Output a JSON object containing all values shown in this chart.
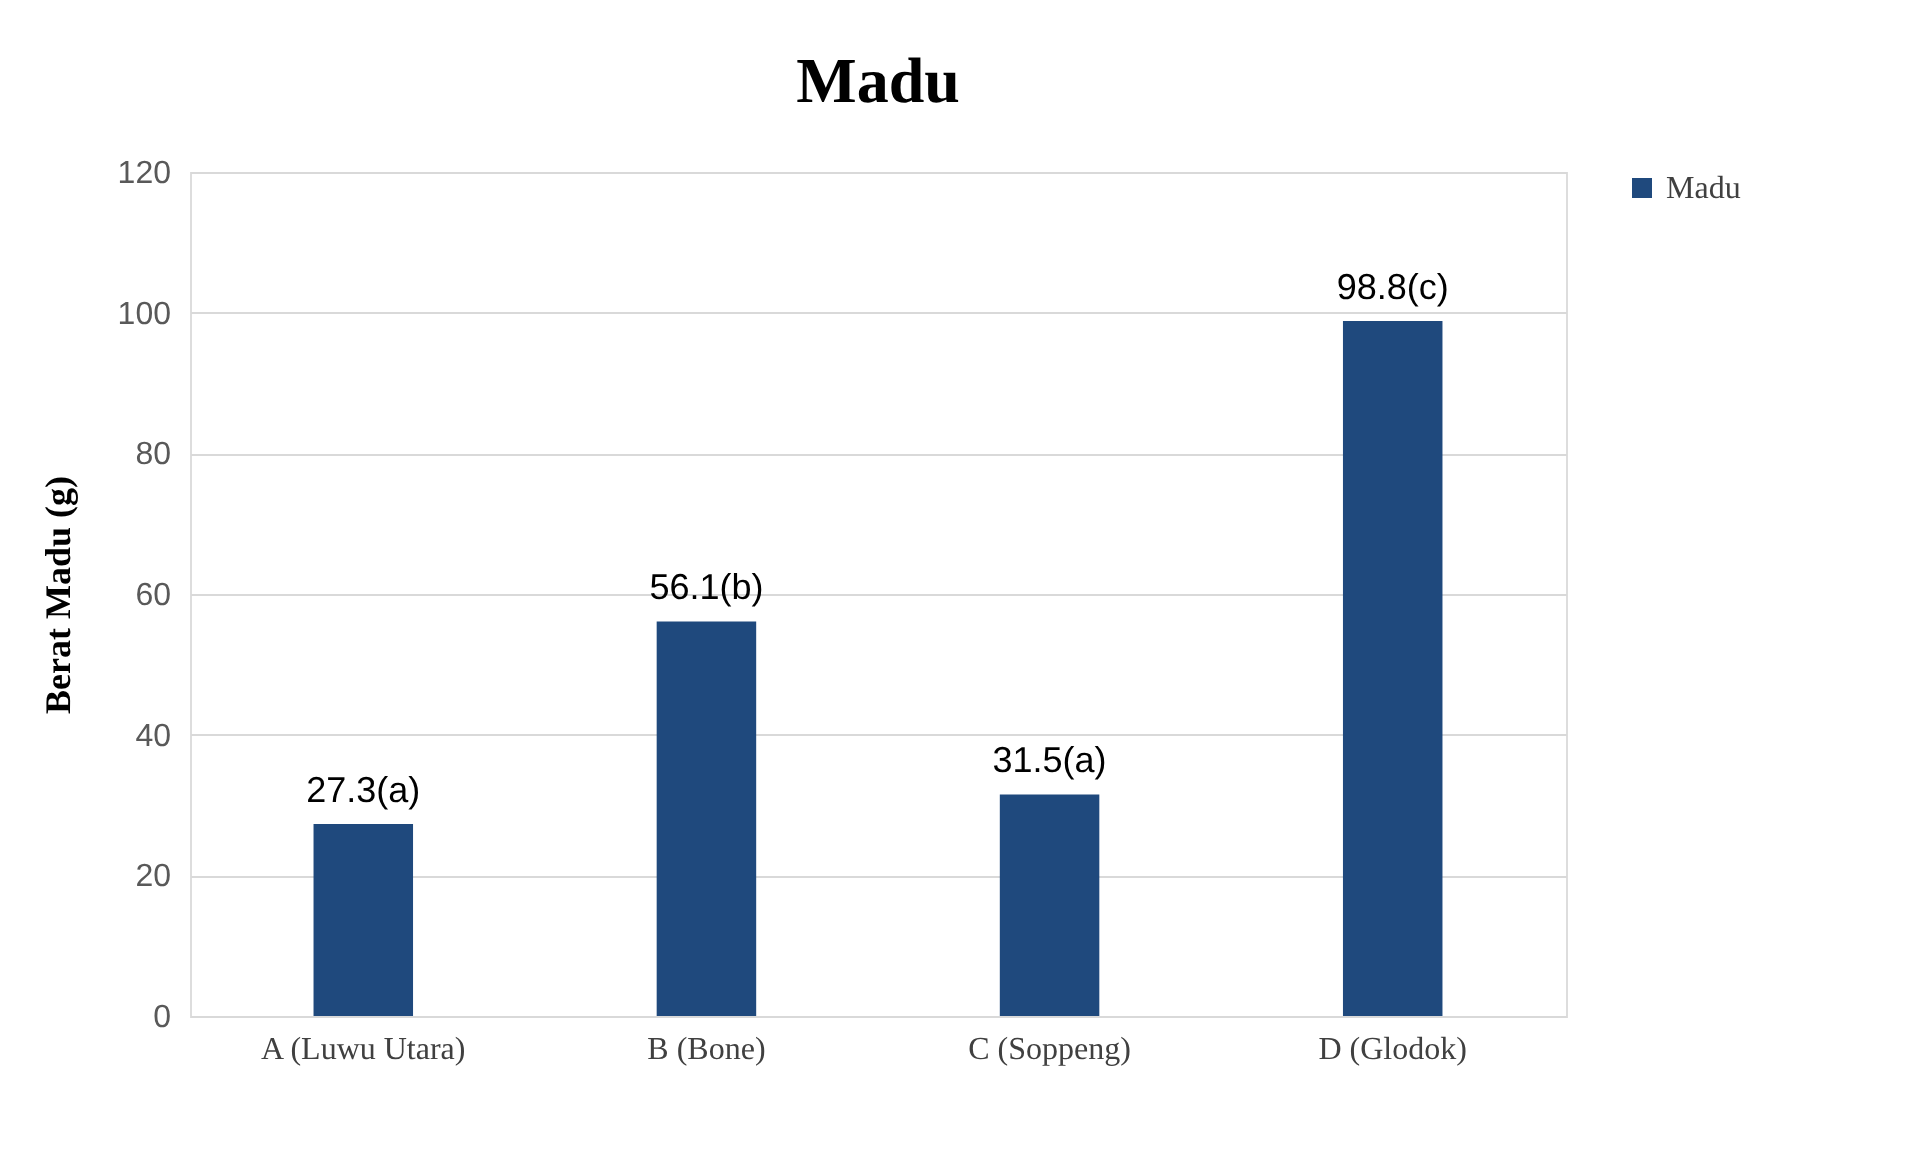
{
  "chart_data": {
    "type": "bar",
    "title": "Madu",
    "ylabel": "Berat Madu (g)",
    "categories": [
      "A (Luwu Utara)",
      "B (Bone)",
      "C (Soppeng)",
      "D (Glodok)"
    ],
    "series": [
      {
        "name": "Madu",
        "color": "#1f497d",
        "values": [
          27.3,
          56.1,
          31.5,
          98.8
        ],
        "value_labels": [
          "27.3(a)",
          "56.1(b)",
          "31.5(a)",
          "98.8(c)"
        ]
      }
    ],
    "ylim": [
      0,
      120
    ],
    "yticks": [
      0,
      20,
      40,
      60,
      80,
      100,
      120
    ],
    "grid": "y",
    "legend": "right"
  }
}
